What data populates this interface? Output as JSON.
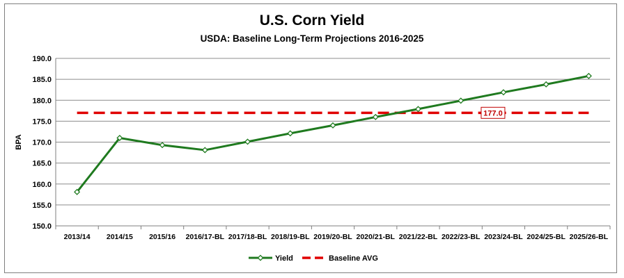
{
  "chart_data": {
    "type": "line",
    "title": "U.S. Corn Yield",
    "subtitle": "USDA:  Baseline Long-Term Projections 2016-2025",
    "ylabel": "BPA",
    "xlabel": "",
    "ylim": [
      150,
      190
    ],
    "yticks": [
      "150.0",
      "155.0",
      "160.0",
      "165.0",
      "170.0",
      "175.0",
      "180.0",
      "185.0",
      "190.0"
    ],
    "grid": "horizontal",
    "legend_position": "bottom",
    "categories": [
      "2013/14",
      "2014/15",
      "2015/16",
      "2016/17-BL",
      "2017/18-BL",
      "2018/19-BL",
      "2019/20-BL",
      "2020/21-BL",
      "2021/22-BL",
      "2022/23-BL",
      "2023/24-BL",
      "2024/25-BL",
      "2025/26-BL"
    ],
    "series": [
      {
        "name": "Yield",
        "color": "#1f7a1f",
        "marker": "diamond-open",
        "values": [
          158.1,
          171.0,
          169.3,
          168.1,
          170.1,
          172.1,
          174.0,
          176.0,
          177.9,
          179.9,
          181.9,
          183.8,
          185.8
        ]
      },
      {
        "name": "Baseline AVG",
        "color": "#e00000",
        "style": "dashed",
        "values": [
          177.0,
          177.0,
          177.0,
          177.0,
          177.0,
          177.0,
          177.0,
          177.0,
          177.0,
          177.0,
          177.0,
          177.0,
          177.0
        ]
      }
    ],
    "annotations": [
      {
        "text": "177.0",
        "series": "Baseline AVG",
        "category": "2023/24-BL"
      }
    ]
  }
}
